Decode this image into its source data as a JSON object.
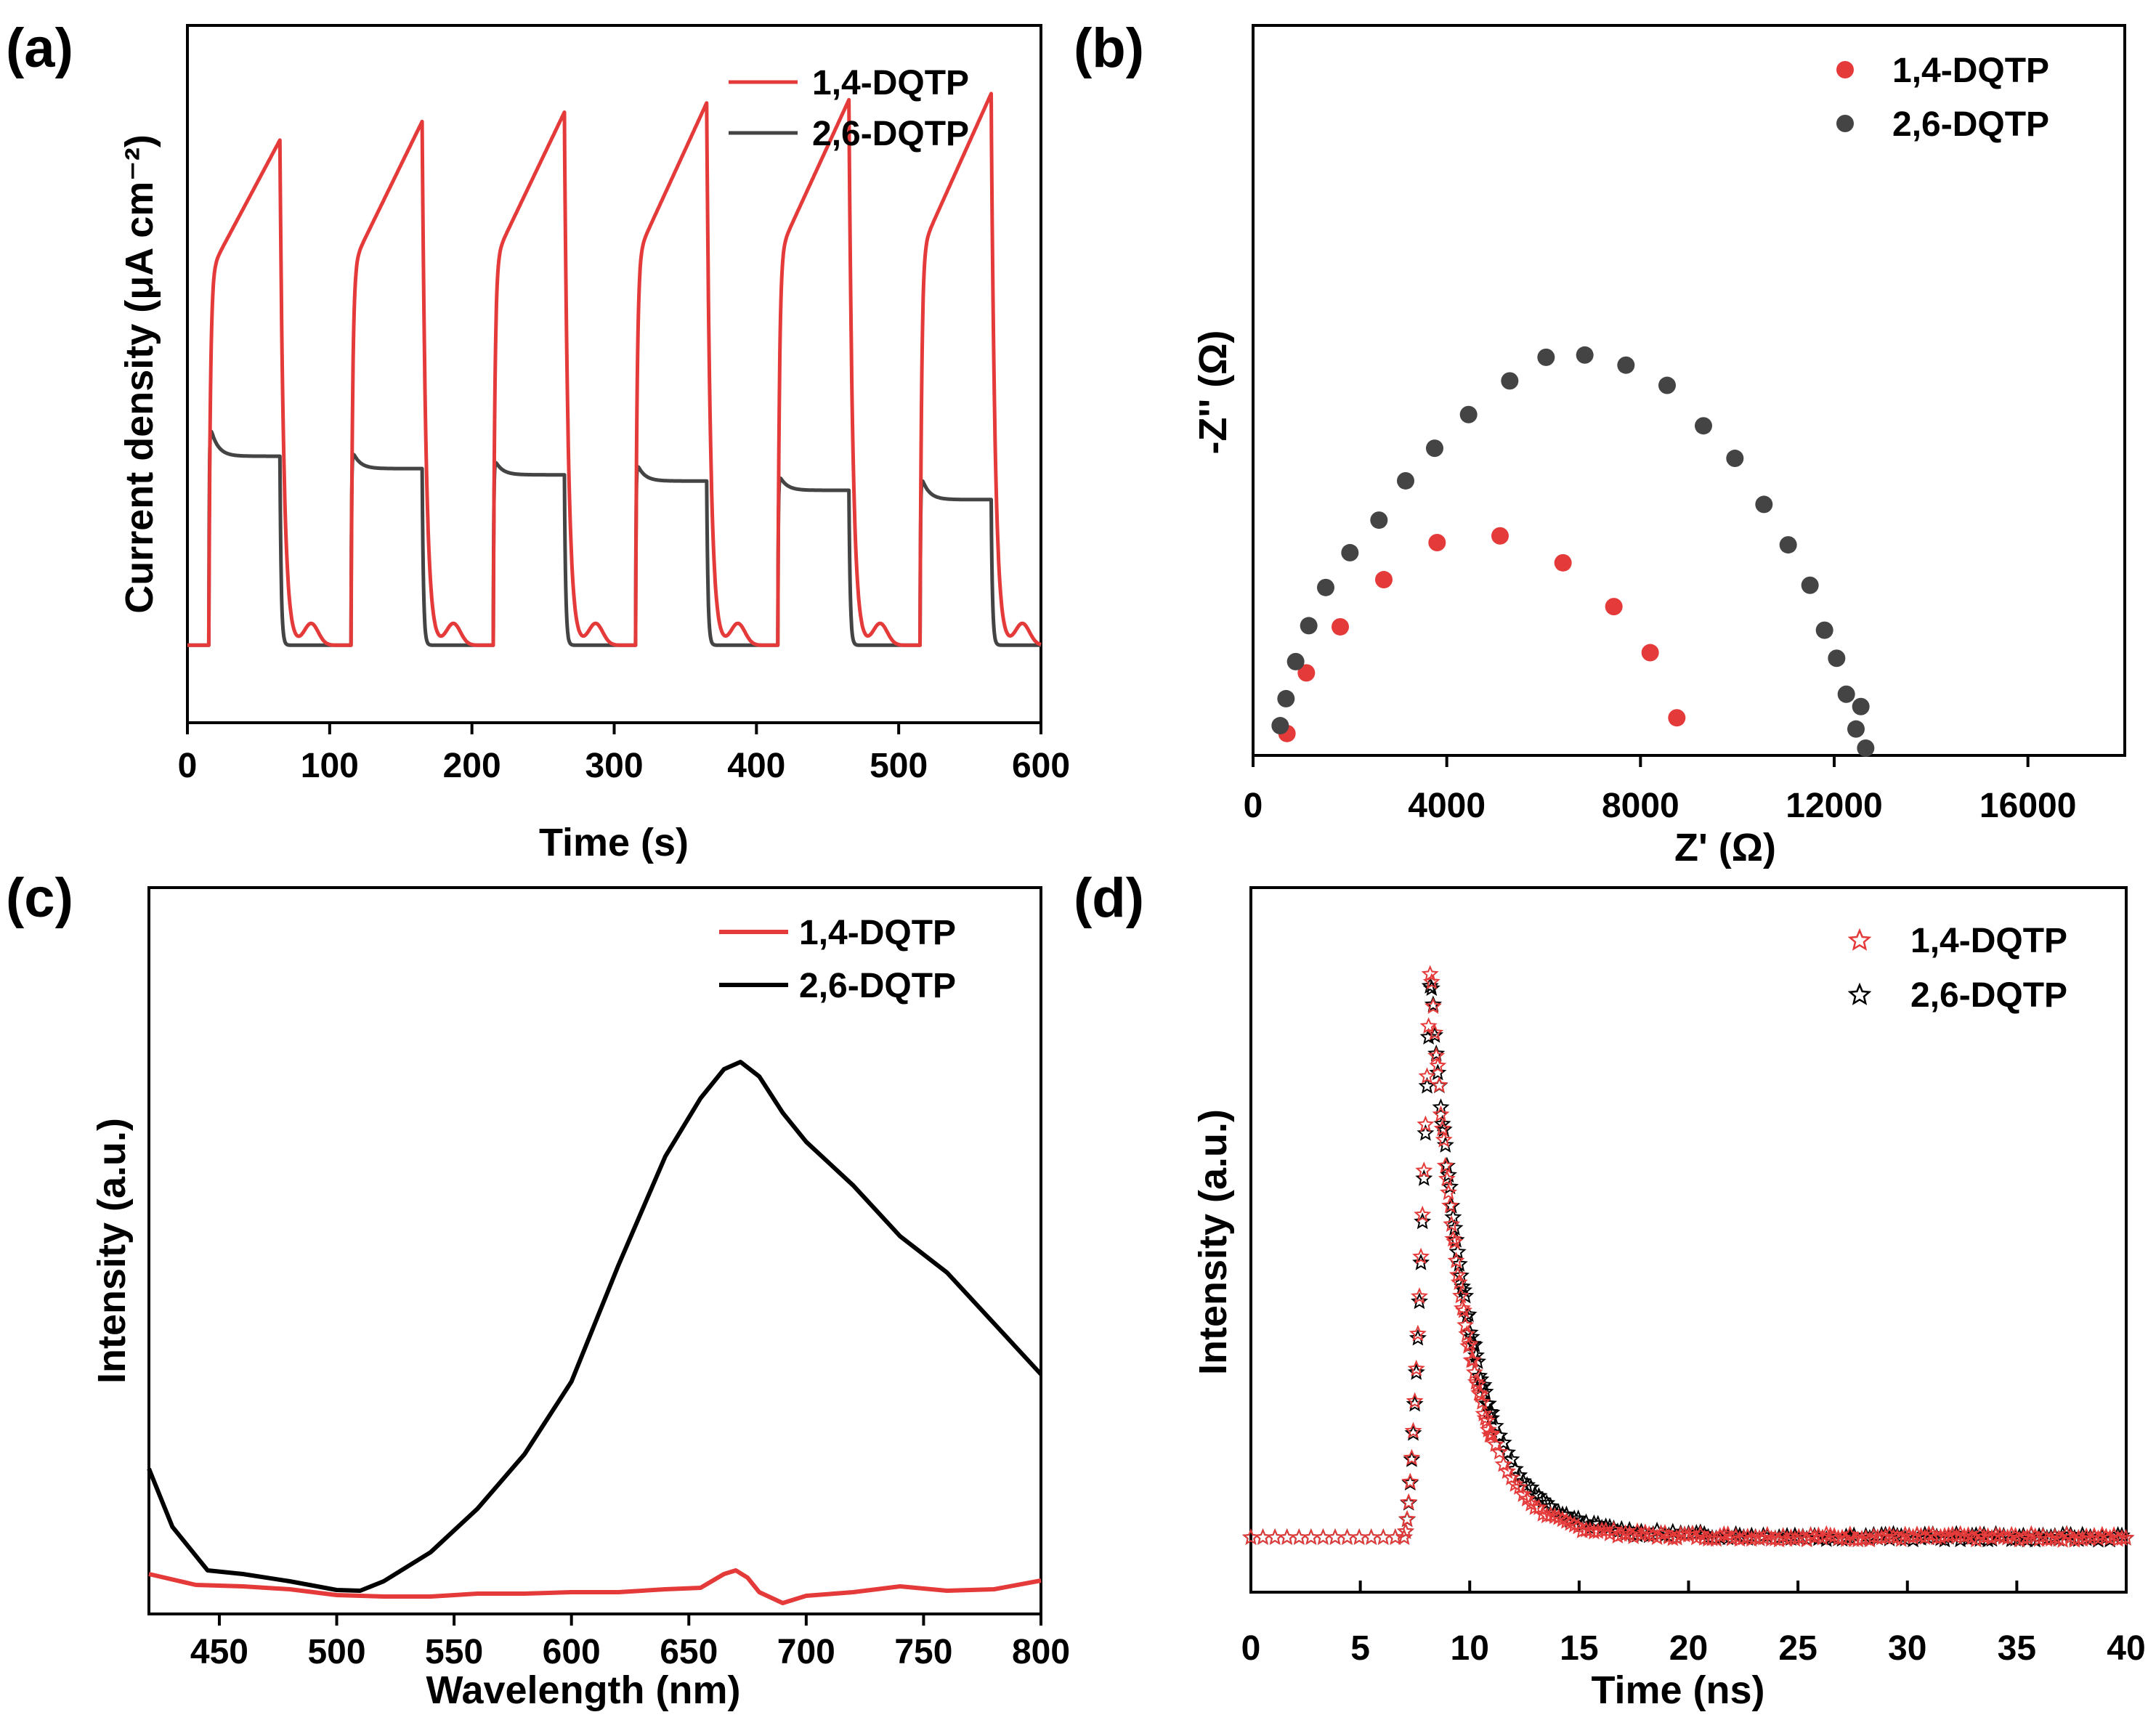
{
  "figure": {
    "colors": {
      "series_1_4": "#e53a3a",
      "series_2_6": "#444444",
      "series_2_6_pl": "#000000",
      "axis": "#000000"
    }
  },
  "chart_data": [
    {
      "id": "a",
      "panel_label": "(a)",
      "type": "line",
      "title": "",
      "xlabel": "Time (s)",
      "ylabel": "Current density (μA cm⁻²)",
      "xlim": [
        0,
        600
      ],
      "ylim": [
        -2.5,
        20
      ],
      "xticks": [
        0,
        100,
        200,
        300,
        400,
        500,
        600
      ],
      "yticks": [],
      "legend": "top-right",
      "series": [
        {
          "name": "1,4-DQTP",
          "color": "#e53a3a",
          "light_on": [
            15,
            115,
            215,
            315,
            415,
            515
          ],
          "light_off": [
            65,
            165,
            265,
            365,
            465,
            565
          ],
          "plateau_start": [
            12.0,
            12.2,
            12.4,
            12.5,
            12.6,
            12.7
          ],
          "peak_values": [
            16.3,
            16.9,
            17.2,
            17.5,
            17.6,
            17.8
          ],
          "dark_value": 0
        },
        {
          "name": "2,6-DQTP",
          "color": "#444444",
          "light_on": [
            15,
            115,
            215,
            315,
            415,
            515
          ],
          "light_off": [
            65,
            165,
            265,
            365,
            465,
            565
          ],
          "spike_values": [
            7.3,
            6.4,
            6.1,
            6.0,
            5.6,
            5.6
          ],
          "plateau_end": [
            6.1,
            5.7,
            5.5,
            5.3,
            5.0,
            4.7
          ],
          "dark_value": 0
        }
      ]
    },
    {
      "id": "b",
      "panel_label": "(b)",
      "type": "scatter",
      "title": "",
      "xlabel": "Z' (Ω)",
      "ylabel": "-Z'' (Ω)",
      "xlim": [
        0,
        18000
      ],
      "ylim": [
        0,
        6500
      ],
      "xticks": [
        0,
        4000,
        8000,
        12000,
        16000
      ],
      "yticks": [],
      "legend": "top-right",
      "series": [
        {
          "name": "1,4-DQTP",
          "color": "#e53a3a",
          "x": [
            700,
            1100,
            1800,
            2700,
            3800,
            5100,
            6400,
            7450,
            8200,
            8750
          ],
          "y": [
            195,
            735,
            1145,
            1565,
            1895,
            1955,
            1715,
            1325,
            915,
            335
          ]
        },
        {
          "name": "2,6-DQTP",
          "color": "#444444",
          "x": [
            560,
            680,
            880,
            1150,
            1500,
            2000,
            2600,
            3150,
            3750,
            4450,
            5300,
            6050,
            6850,
            7700,
            8550,
            9300,
            9950,
            10550,
            11050,
            11500,
            11800,
            12050,
            12250,
            12450,
            12550,
            12650
          ],
          "y": [
            265,
            505,
            835,
            1155,
            1495,
            1805,
            2095,
            2445,
            2735,
            3035,
            3335,
            3545,
            3565,
            3475,
            3295,
            2935,
            2645,
            2235,
            1875,
            1515,
            1115,
            865,
            545,
            235,
            435,
            65
          ]
        }
      ]
    },
    {
      "id": "c",
      "panel_label": "(c)",
      "type": "line",
      "title": "",
      "xlabel": "Wavelength (nm)",
      "ylabel": "Intensity (a.u.)",
      "xlim": [
        420,
        800
      ],
      "ylim": [
        0,
        100
      ],
      "xticks": [
        450,
        500,
        550,
        600,
        650,
        700,
        750,
        800
      ],
      "yticks": [],
      "legend": "top-right",
      "series": [
        {
          "name": "1,4-DQTP",
          "color": "#e53a3a",
          "x": [
            420,
            440,
            460,
            480,
            500,
            520,
            540,
            560,
            580,
            600,
            620,
            640,
            655,
            665,
            670,
            675,
            680,
            690,
            700,
            720,
            740,
            760,
            780,
            800
          ],
          "y": [
            5.5,
            4.0,
            3.8,
            3.4,
            2.6,
            2.4,
            2.4,
            2.8,
            2.8,
            3.0,
            3.0,
            3.4,
            3.6,
            5.5,
            6.0,
            5.0,
            3.0,
            1.5,
            2.5,
            3.0,
            3.8,
            3.2,
            3.4,
            4.6
          ]
        },
        {
          "name": "2,6-DQTP",
          "color": "#000000",
          "x": [
            420,
            430,
            445,
            460,
            480,
            500,
            510,
            520,
            540,
            560,
            580,
            600,
            620,
            640,
            655,
            665,
            672,
            680,
            690,
            700,
            720,
            740,
            760,
            780,
            800
          ],
          "y": [
            20,
            12,
            6,
            5.5,
            4.5,
            3.3,
            3.2,
            4.5,
            8.5,
            14.5,
            22,
            32,
            48,
            63,
            71,
            75,
            76,
            74,
            69,
            65,
            59,
            52,
            47,
            40,
            33
          ]
        }
      ]
    },
    {
      "id": "d",
      "panel_label": "(d)",
      "type": "scatter",
      "title": "",
      "xlabel": "Time (ns)",
      "ylabel": "Intensity (a.u.)",
      "xlim": [
        0,
        40
      ],
      "ylim": [
        -30,
        1130
      ],
      "xticks": [
        0,
        5,
        10,
        15,
        20,
        25,
        30,
        35,
        40
      ],
      "yticks": [],
      "legend": "top-right",
      "marker": "open-star",
      "series": [
        {
          "name": "1,4-DQTP",
          "color": "#e53a3a",
          "baseline": 60,
          "rise_start_ns": 7.0,
          "peak_time_ns": 8.2,
          "peak_value": 1000,
          "decay_tau_ns": 1.6,
          "tail_value": 8
        },
        {
          "name": "2,6-DQTP",
          "color": "#000000",
          "baseline": 60,
          "rise_start_ns": 7.0,
          "peak_time_ns": 8.2,
          "peak_value": 980,
          "decay_tau_ns": 1.8,
          "tail_value": 12
        }
      ]
    }
  ]
}
